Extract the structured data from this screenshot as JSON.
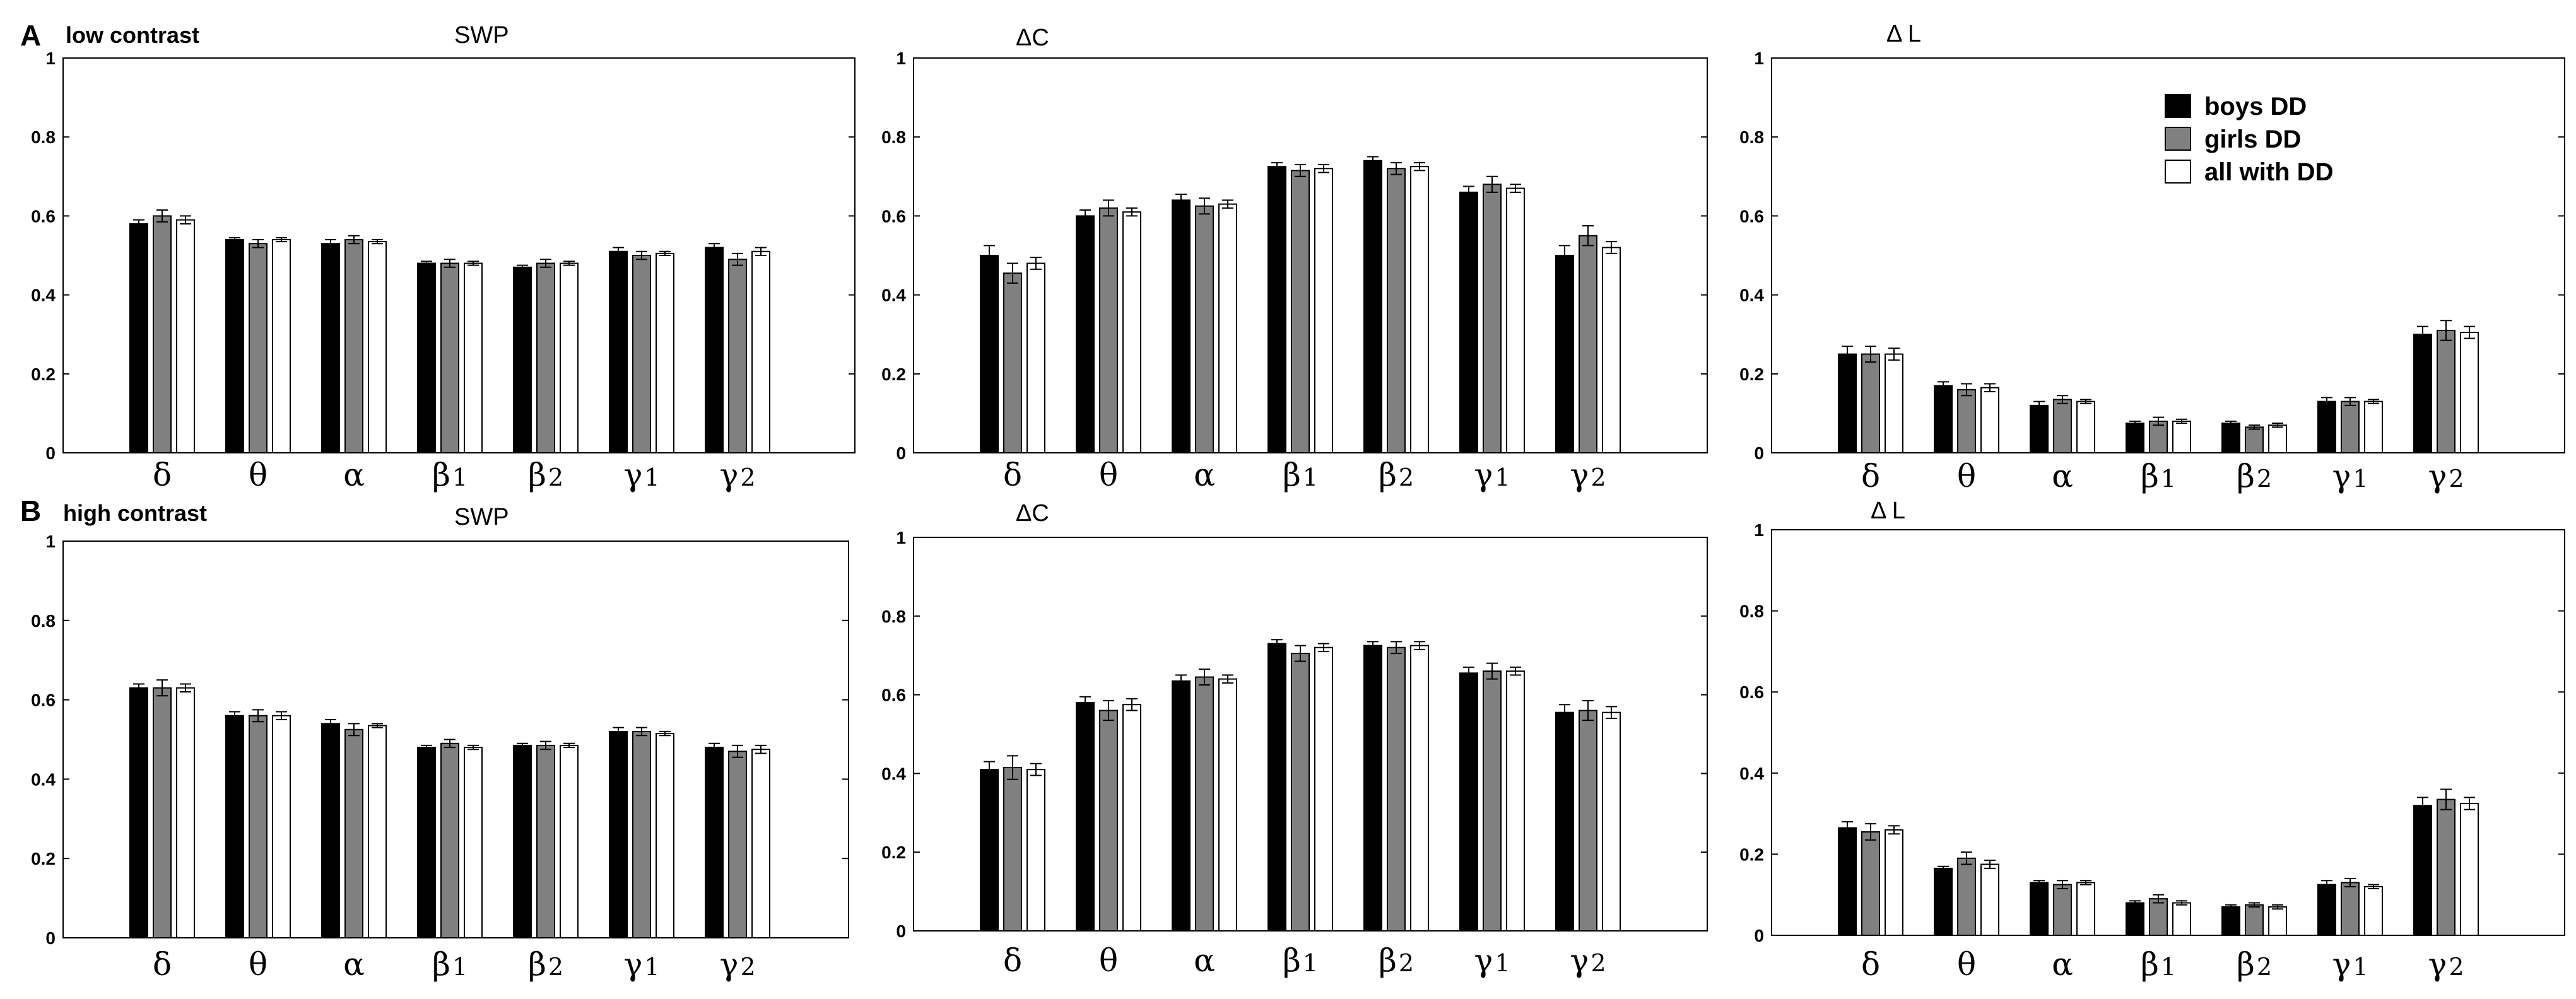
{
  "figure": {
    "row_a_label": "A",
    "row_a_title": "low contrast",
    "row_b_label": "B",
    "row_b_title": "high contrast"
  },
  "legend": {
    "position": "top-right of panel A-ΔL",
    "entries": [
      {
        "name": "boys DD",
        "color": "#000000"
      },
      {
        "name": "girls DD",
        "color": "#808080"
      },
      {
        "name": "all with DD",
        "color": "#ffffff"
      }
    ]
  },
  "chart_data": [
    {
      "panel": "A1",
      "type": "bar",
      "title": "SWP",
      "ylim": [
        0,
        1
      ],
      "yticks": [
        0,
        0.2,
        0.4,
        0.6,
        0.8,
        1
      ],
      "ytick_labels": [
        "0",
        "0.2",
        "0.4",
        "0.6",
        "0.8",
        "1"
      ],
      "categories": [
        "δ",
        "θ",
        "α",
        "β1",
        "β2",
        "γ1",
        "γ2"
      ],
      "series": [
        {
          "name": "boys DD",
          "color": "#000000",
          "values": [
            0.58,
            0.54,
            0.53,
            0.48,
            0.47,
            0.51,
            0.52
          ],
          "errors": [
            0.01,
            0.005,
            0.01,
            0.005,
            0.005,
            0.01,
            0.01
          ]
        },
        {
          "name": "girls DD",
          "color": "#808080",
          "values": [
            0.6,
            0.53,
            0.54,
            0.48,
            0.48,
            0.5,
            0.49
          ],
          "errors": [
            0.015,
            0.01,
            0.01,
            0.01,
            0.01,
            0.01,
            0.015
          ]
        },
        {
          "name": "all with DD",
          "color": "#ffffff",
          "values": [
            0.59,
            0.54,
            0.535,
            0.48,
            0.48,
            0.505,
            0.51
          ],
          "errors": [
            0.01,
            0.005,
            0.005,
            0.005,
            0.005,
            0.005,
            0.01
          ]
        }
      ]
    },
    {
      "panel": "A2",
      "type": "bar",
      "title": "ΔC",
      "ylim": [
        0,
        1
      ],
      "yticks": [
        0,
        0.2,
        0.4,
        0.6,
        0.8,
        1
      ],
      "ytick_labels": [
        "0",
        "0.2",
        "0.4",
        "0.6",
        "0.8",
        "1"
      ],
      "categories": [
        "δ",
        "θ",
        "α",
        "β1",
        "β2",
        "γ1",
        "γ2"
      ],
      "series": [
        {
          "name": "boys DD",
          "color": "#000000",
          "values": [
            0.5,
            0.6,
            0.64,
            0.725,
            0.74,
            0.66,
            0.5
          ],
          "errors": [
            0.025,
            0.015,
            0.015,
            0.01,
            0.01,
            0.015,
            0.025
          ]
        },
        {
          "name": "girls DD",
          "color": "#808080",
          "values": [
            0.455,
            0.62,
            0.625,
            0.715,
            0.72,
            0.68,
            0.55
          ],
          "errors": [
            0.025,
            0.02,
            0.02,
            0.015,
            0.015,
            0.02,
            0.025
          ]
        },
        {
          "name": "all with DD",
          "color": "#ffffff",
          "values": [
            0.48,
            0.61,
            0.63,
            0.72,
            0.725,
            0.67,
            0.52
          ],
          "errors": [
            0.015,
            0.01,
            0.01,
            0.01,
            0.01,
            0.01,
            0.015
          ]
        }
      ]
    },
    {
      "panel": "A3",
      "type": "bar",
      "title": "Δ L",
      "ylim": [
        0,
        1
      ],
      "yticks": [
        0,
        0.2,
        0.4,
        0.6,
        0.8,
        1
      ],
      "ytick_labels": [
        "0",
        "0.2",
        "0.4",
        "0.6",
        "0.8",
        "1"
      ],
      "categories": [
        "δ",
        "θ",
        "α",
        "β1",
        "β2",
        "γ1",
        "γ2"
      ],
      "series": [
        {
          "name": "boys DD",
          "color": "#000000",
          "values": [
            0.25,
            0.17,
            0.12,
            0.075,
            0.075,
            0.13,
            0.3
          ],
          "errors": [
            0.02,
            0.01,
            0.01,
            0.005,
            0.005,
            0.01,
            0.02
          ]
        },
        {
          "name": "girls DD",
          "color": "#808080",
          "values": [
            0.25,
            0.16,
            0.135,
            0.08,
            0.065,
            0.13,
            0.31
          ],
          "errors": [
            0.02,
            0.015,
            0.01,
            0.01,
            0.005,
            0.01,
            0.025
          ]
        },
        {
          "name": "all with DD",
          "color": "#ffffff",
          "values": [
            0.25,
            0.165,
            0.13,
            0.08,
            0.07,
            0.13,
            0.305
          ],
          "errors": [
            0.015,
            0.01,
            0.005,
            0.005,
            0.005,
            0.005,
            0.015
          ]
        }
      ]
    },
    {
      "panel": "B1",
      "type": "bar",
      "title": "SWP",
      "ylim": [
        0,
        1
      ],
      "yticks": [
        0,
        0.2,
        0.4,
        0.6,
        0.8,
        1
      ],
      "ytick_labels": [
        "0",
        "0.2",
        "0.4",
        "0.6",
        "0.8",
        "1"
      ],
      "categories": [
        "δ",
        "θ",
        "α",
        "β1",
        "β2",
        "γ1",
        "γ2"
      ],
      "series": [
        {
          "name": "boys DD",
          "color": "#000000",
          "values": [
            0.63,
            0.56,
            0.54,
            0.48,
            0.485,
            0.52,
            0.48
          ],
          "errors": [
            0.01,
            0.01,
            0.01,
            0.005,
            0.005,
            0.01,
            0.01
          ]
        },
        {
          "name": "girls DD",
          "color": "#808080",
          "values": [
            0.63,
            0.56,
            0.525,
            0.49,
            0.485,
            0.52,
            0.47
          ],
          "errors": [
            0.02,
            0.015,
            0.015,
            0.01,
            0.01,
            0.01,
            0.015
          ]
        },
        {
          "name": "all with DD",
          "color": "#ffffff",
          "values": [
            0.63,
            0.56,
            0.535,
            0.48,
            0.485,
            0.515,
            0.475
          ],
          "errors": [
            0.01,
            0.01,
            0.005,
            0.005,
            0.005,
            0.005,
            0.01
          ]
        }
      ]
    },
    {
      "panel": "B2",
      "type": "bar",
      "title": "ΔC",
      "ylim": [
        0,
        1
      ],
      "yticks": [
        0,
        0.2,
        0.4,
        0.6,
        0.8,
        1
      ],
      "ytick_labels": [
        "0",
        "0.2",
        "0.4",
        "0.6",
        "0.8",
        "1"
      ],
      "categories": [
        "δ",
        "θ",
        "α",
        "β1",
        "β2",
        "γ1",
        "γ2"
      ],
      "series": [
        {
          "name": "boys DD",
          "color": "#000000",
          "values": [
            0.41,
            0.58,
            0.635,
            0.73,
            0.725,
            0.655,
            0.555
          ],
          "errors": [
            0.02,
            0.015,
            0.015,
            0.01,
            0.01,
            0.015,
            0.02
          ]
        },
        {
          "name": "girls DD",
          "color": "#808080",
          "values": [
            0.415,
            0.56,
            0.645,
            0.705,
            0.72,
            0.66,
            0.56
          ],
          "errors": [
            0.03,
            0.025,
            0.02,
            0.02,
            0.015,
            0.02,
            0.025
          ]
        },
        {
          "name": "all with DD",
          "color": "#ffffff",
          "values": [
            0.41,
            0.575,
            0.64,
            0.72,
            0.725,
            0.66,
            0.555
          ],
          "errors": [
            0.015,
            0.015,
            0.01,
            0.01,
            0.01,
            0.01,
            0.015
          ]
        }
      ]
    },
    {
      "panel": "B3",
      "type": "bar",
      "title": "Δ L",
      "ylim": [
        0,
        1
      ],
      "yticks": [
        0,
        0.2,
        0.4,
        0.6,
        0.8,
        1
      ],
      "ytick_labels": [
        "0",
        "0.2",
        "0.4",
        "0.6",
        "0.8",
        "1"
      ],
      "categories": [
        "δ",
        "θ",
        "α",
        "β1",
        "β2",
        "γ1",
        "γ2"
      ],
      "series": [
        {
          "name": "boys DD",
          "color": "#000000",
          "values": [
            0.265,
            0.165,
            0.13,
            0.08,
            0.07,
            0.125,
            0.32
          ],
          "errors": [
            0.015,
            0.005,
            0.005,
            0.005,
            0.005,
            0.01,
            0.02
          ]
        },
        {
          "name": "girls DD",
          "color": "#808080",
          "values": [
            0.255,
            0.19,
            0.125,
            0.09,
            0.075,
            0.13,
            0.335
          ],
          "errors": [
            0.02,
            0.015,
            0.01,
            0.01,
            0.005,
            0.01,
            0.025
          ]
        },
        {
          "name": "all with DD",
          "color": "#ffffff",
          "values": [
            0.26,
            0.175,
            0.13,
            0.08,
            0.07,
            0.12,
            0.325
          ],
          "errors": [
            0.01,
            0.01,
            0.005,
            0.005,
            0.005,
            0.005,
            0.015
          ]
        }
      ]
    }
  ]
}
